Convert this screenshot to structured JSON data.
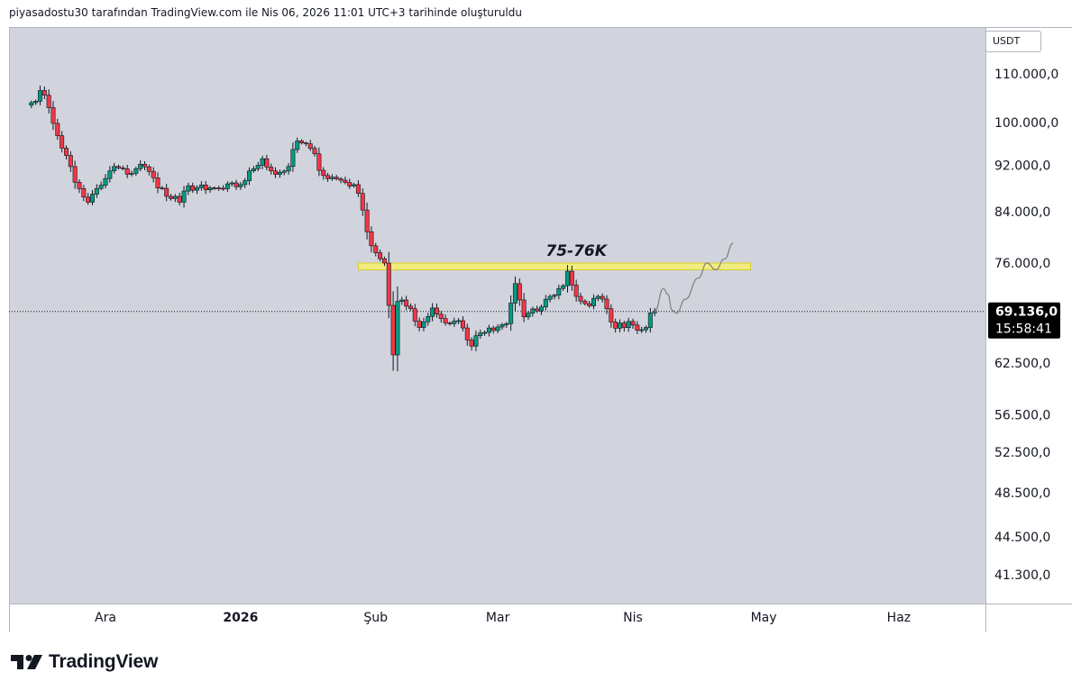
{
  "header": {
    "created_by": "piyasadostu30 tarafından TradingView.com ile Nis 06, 2026 11:01 UTC+3 tarihinde oluşturuldu"
  },
  "currency": "USDT",
  "footer": {
    "brand": "TradingView",
    "logo_icon": "tradingview-logo-icon"
  },
  "colors": {
    "plot_bg": "#d1d4dc",
    "up": "#089981",
    "down": "#f23645",
    "zone_fill": "#f7f06e",
    "zone_stroke": "#d8cf2a",
    "last_price_bg": "#000000"
  },
  "chart_data": {
    "type": "candlestick",
    "symbol_quote": "USDT",
    "y_scale": "log",
    "y_ticks": [
      "110.000,0",
      "100.000,0",
      "92.000,0",
      "84.000,0",
      "76.000,0",
      "62.500,0",
      "56.500,0",
      "52.500,0",
      "48.500,0",
      "44.500,0",
      "41.300,0"
    ],
    "y_tick_values": [
      110000,
      100000,
      92000,
      84000,
      76000,
      62500,
      56500,
      52500,
      48500,
      44500,
      41300
    ],
    "x_ticks": [
      {
        "label": "Ara",
        "date": "2025-12-01",
        "bold": false
      },
      {
        "label": "2026",
        "date": "2026-01-01",
        "bold": true
      },
      {
        "label": "Şub",
        "date": "2026-02-01",
        "bold": false
      },
      {
        "label": "Mar",
        "date": "2026-03-01",
        "bold": false
      },
      {
        "label": "Nis",
        "date": "2026-04-01",
        "bold": false
      },
      {
        "label": "May",
        "date": "2026-05-01",
        "bold": false
      },
      {
        "label": "Haz",
        "date": "2026-06-01",
        "bold": false
      }
    ],
    "last_price": "69.136,0",
    "last_price_value": 69136,
    "countdown": "15:58:41",
    "annotation": {
      "text": "75-76K",
      "zone_low": 75000,
      "zone_high": 76000,
      "zone_from": "2026-01-28",
      "zone_to": "2026-04-28"
    },
    "projection": [
      {
        "date": "2026-04-06",
        "price": 69136
      },
      {
        "date": "2026-04-08",
        "price": 72300
      },
      {
        "date": "2026-04-09",
        "price": 71500
      },
      {
        "date": "2026-04-10",
        "price": 69300
      },
      {
        "date": "2026-04-11",
        "price": 68900
      },
      {
        "date": "2026-04-13",
        "price": 70800
      },
      {
        "date": "2026-04-16",
        "price": 73800
      },
      {
        "date": "2026-04-18",
        "price": 76000
      },
      {
        "date": "2026-04-20",
        "price": 75000
      },
      {
        "date": "2026-04-22",
        "price": 76600
      },
      {
        "date": "2026-04-24",
        "price": 79000
      }
    ],
    "anchors": [
      [
        "2025-11-14",
        104000
      ],
      [
        "2025-11-16",
        106500
      ],
      [
        "2025-11-18",
        103000
      ],
      [
        "2025-11-20",
        97500
      ],
      [
        "2025-11-22",
        93800
      ],
      [
        "2025-11-24",
        89000
      ],
      [
        "2025-11-27",
        85600
      ],
      [
        "2025-11-30",
        88500
      ],
      [
        "2025-12-03",
        91800
      ],
      [
        "2025-12-06",
        90400
      ],
      [
        "2025-12-09",
        92200
      ],
      [
        "2025-12-12",
        89800
      ],
      [
        "2025-12-15",
        86600
      ],
      [
        "2025-12-18",
        85600
      ],
      [
        "2025-12-20",
        88400
      ],
      [
        "2025-12-24",
        87700
      ],
      [
        "2025-12-28",
        87900
      ],
      [
        "2026-01-01",
        88600
      ],
      [
        "2026-01-04",
        91400
      ],
      [
        "2026-01-06",
        93200
      ],
      [
        "2026-01-09",
        90400
      ],
      [
        "2026-01-12",
        91800
      ],
      [
        "2026-01-14",
        96500
      ],
      [
        "2026-01-17",
        95100
      ],
      [
        "2026-01-20",
        90200
      ],
      [
        "2026-01-23",
        89600
      ],
      [
        "2026-01-27",
        88600
      ],
      [
        "2026-01-29",
        84300
      ],
      [
        "2026-01-31",
        78600
      ],
      [
        "2026-02-03",
        76000
      ],
      [
        "2026-02-05",
        63500
      ],
      [
        "2026-02-06",
        70500
      ],
      [
        "2026-02-09",
        69500
      ],
      [
        "2026-02-11",
        67000
      ],
      [
        "2026-02-14",
        69600
      ],
      [
        "2026-02-17",
        67600
      ],
      [
        "2026-02-20",
        67900
      ],
      [
        "2026-02-23",
        64600
      ],
      [
        "2026-02-25",
        66300
      ],
      [
        "2026-02-28",
        66600
      ],
      [
        "2026-03-03",
        67500
      ],
      [
        "2026-03-05",
        73000
      ],
      [
        "2026-03-07",
        68400
      ],
      [
        "2026-03-10",
        69200
      ],
      [
        "2026-03-13",
        71200
      ],
      [
        "2026-03-16",
        72700
      ],
      [
        "2026-03-17",
        74800
      ],
      [
        "2026-03-19",
        71200
      ],
      [
        "2026-03-22",
        69900
      ],
      [
        "2026-03-24",
        71200
      ],
      [
        "2026-03-26",
        69500
      ],
      [
        "2026-03-28",
        66900
      ],
      [
        "2026-03-31",
        67800
      ],
      [
        "2026-04-03",
        66700
      ],
      [
        "2026-04-06",
        69136
      ]
    ]
  }
}
